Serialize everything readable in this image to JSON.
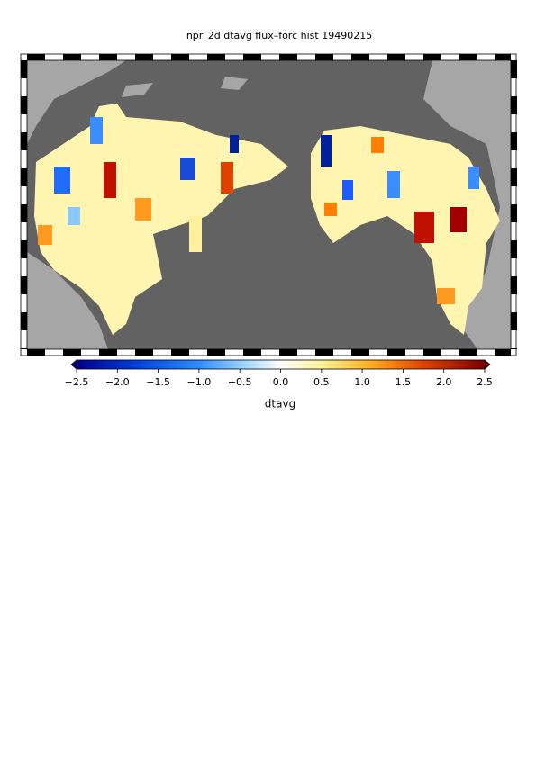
{
  "title": "npr_2d dtavg flux–forc hist 19490215",
  "colorbar": {
    "label": "dtavg",
    "lim": [
      -2.5,
      2.5
    ],
    "ticks": [
      {
        "value": -2.5,
        "label": "−2.5"
      },
      {
        "value": -2.0,
        "label": "−2.0"
      },
      {
        "value": -1.5,
        "label": "−1.5"
      },
      {
        "value": -1.0,
        "label": "−1.0"
      },
      {
        "value": -0.5,
        "label": "−0.5"
      },
      {
        "value": 0,
        "label": "0.0"
      },
      0.5,
      {
        "value": 1,
        "label": "1.0"
      },
      1.5,
      {
        "value": 2,
        "label": "2.0"
      },
      2.5
    ]
  }
}
